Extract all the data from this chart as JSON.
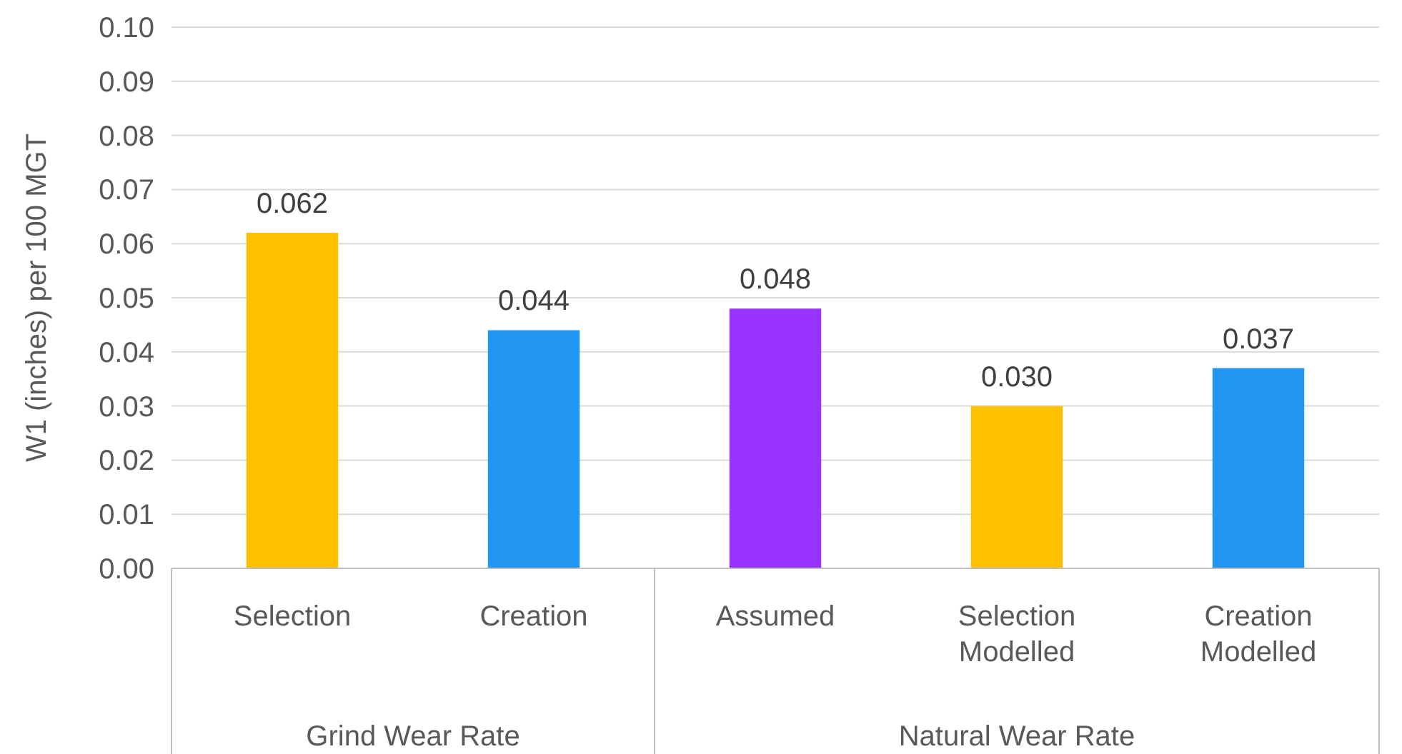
{
  "chart_data": {
    "type": "bar",
    "ylabel": "W1 (inches) per 100 MGT",
    "categories": [
      "Selection",
      "Creation",
      "Assumed",
      "Selection Modelled",
      "Creation Modelled"
    ],
    "values": [
      0.062,
      0.044,
      0.048,
      0.03,
      0.037
    ],
    "colors": [
      "#ffc000",
      "#2196f3",
      "#9933ff",
      "#ffc000",
      "#2196f3"
    ],
    "value_labels": [
      "0.062",
      "0.044",
      "0.048",
      "0.030",
      "0.037"
    ],
    "ylim": [
      0,
      0.1
    ],
    "yticks": [
      {
        "value": 0,
        "label": "0.00"
      },
      {
        "value": 0.01,
        "label": "0.01"
      },
      {
        "value": 0.02,
        "label": "0.02"
      },
      {
        "value": 0.03,
        "label": "0.03"
      },
      {
        "value": 0.04,
        "label": "0.04"
      },
      {
        "value": 0.05,
        "label": "0.05"
      },
      {
        "value": 0.06,
        "label": "0.06"
      },
      {
        "value": 0.07,
        "label": "0.07"
      },
      {
        "value": 0.08,
        "label": "0.08"
      },
      {
        "value": 0.09,
        "label": "0.09"
      },
      {
        "value": 0.1,
        "label": "0.10"
      }
    ],
    "grid": "y",
    "annotations": [
      "Grind Wear Rate",
      "Natural Wear Rate"
    ]
  }
}
